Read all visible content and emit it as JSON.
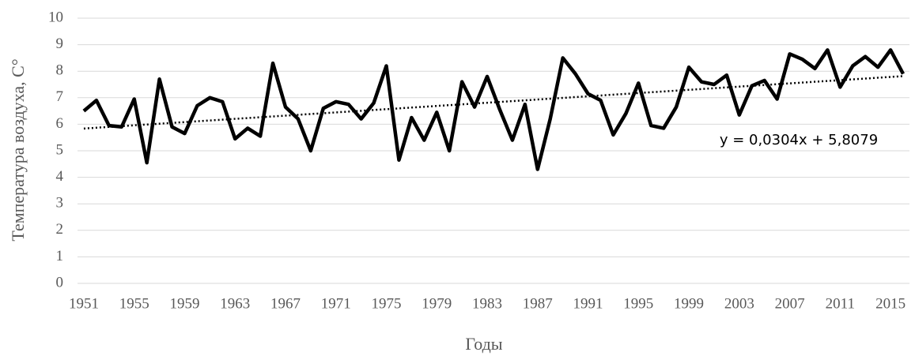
{
  "chart_data": {
    "type": "line",
    "x_label": "Годы",
    "y_label": "Температура воздуха, С°",
    "x": [
      1951,
      1952,
      1953,
      1954,
      1955,
      1956,
      1957,
      1958,
      1959,
      1960,
      1961,
      1962,
      1963,
      1964,
      1965,
      1966,
      1967,
      1968,
      1969,
      1970,
      1971,
      1972,
      1973,
      1974,
      1975,
      1976,
      1977,
      1978,
      1979,
      1980,
      1981,
      1982,
      1983,
      1984,
      1985,
      1986,
      1987,
      1988,
      1989,
      1990,
      1991,
      1992,
      1993,
      1994,
      1995,
      1996,
      1997,
      1998,
      1999,
      2000,
      2001,
      2002,
      2003,
      2004,
      2005,
      2006,
      2007,
      2008,
      2009,
      2010,
      2011,
      2012,
      2013,
      2014,
      2015,
      2016
    ],
    "series": [
      {
        "color": "#000000",
        "values": [
          6.5,
          6.9,
          5.95,
          5.9,
          6.95,
          4.55,
          7.7,
          5.9,
          5.65,
          6.7,
          7.0,
          6.85,
          5.45,
          5.85,
          5.55,
          8.3,
          6.65,
          6.2,
          5.0,
          6.6,
          6.85,
          6.75,
          6.2,
          6.8,
          8.2,
          4.65,
          6.25,
          5.4,
          6.45,
          5.0,
          7.6,
          6.65,
          7.8,
          6.55,
          5.4,
          6.75,
          4.3,
          6.2,
          8.5,
          7.9,
          7.15,
          6.9,
          5.6,
          6.4,
          7.55,
          5.95,
          5.85,
          6.65,
          8.15,
          7.6,
          7.5,
          7.85,
          6.35,
          7.45,
          7.65,
          6.95,
          8.65,
          8.45,
          8.1,
          8.8,
          7.4,
          8.2,
          8.55,
          8.15,
          8.8,
          7.9
        ]
      }
    ],
    "trendline": {
      "slope": 0.0304,
      "intercept": 5.8079,
      "label": "y = 0,0304x + 5,8079"
    },
    "xlim": [
      1950.5,
      2016.5
    ],
    "xticks": [
      1951,
      1955,
      1959,
      1963,
      1967,
      1971,
      1975,
      1979,
      1983,
      1987,
      1991,
      1995,
      1999,
      2003,
      2007,
      2011,
      2015
    ],
    "ylim": [
      0,
      10
    ],
    "yticks": [
      0,
      1,
      2,
      3,
      4,
      5,
      6,
      7,
      8,
      9,
      10
    ],
    "grid": true
  }
}
